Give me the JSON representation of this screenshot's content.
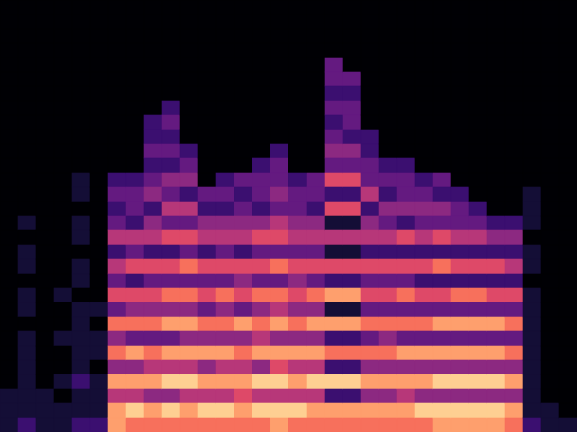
{
  "chart_data": {
    "type": "heatmap",
    "color": "magma",
    "zlim": [
      0,
      10
    ],
    "tick_labels": false,
    "cells": [
      [
        0,
        0,
        0,
        0,
        0,
        0,
        0,
        0,
        0,
        0,
        0,
        0,
        0,
        0,
        0,
        0,
        0,
        0,
        0,
        0,
        0,
        0,
        0,
        0,
        0,
        0,
        0,
        1,
        1,
        1
      ],
      [
        0,
        0,
        0,
        0,
        0,
        0,
        0,
        0,
        0,
        0,
        0,
        0,
        0,
        0,
        0,
        1,
        0,
        1,
        1,
        0,
        1,
        1,
        0,
        1,
        1,
        1,
        1,
        1,
        1,
        2
      ],
      [
        0,
        0,
        0,
        0,
        0,
        0,
        0,
        0,
        0,
        0,
        0,
        0,
        0,
        0,
        0,
        0,
        0,
        0,
        0,
        0,
        0,
        0,
        0,
        0,
        0,
        0,
        0,
        1,
        1,
        1
      ],
      [
        0,
        0,
        0,
        0,
        0,
        0,
        0,
        0,
        0,
        0,
        0,
        0,
        0,
        0,
        0,
        0,
        0,
        0,
        0,
        0,
        1,
        0,
        0,
        1,
        0,
        0,
        1,
        0,
        1,
        1
      ],
      [
        0,
        0,
        0,
        0,
        0,
        0,
        0,
        0,
        0,
        0,
        0,
        0,
        1,
        1,
        0,
        1,
        1,
        0,
        1,
        1,
        0,
        1,
        1,
        1,
        1,
        1,
        2,
        1,
        1,
        2
      ],
      [
        0,
        0,
        0,
        0,
        0,
        0,
        0,
        0,
        0,
        0,
        0,
        0,
        0,
        0,
        0,
        0,
        0,
        0,
        0,
        0,
        0,
        1,
        0,
        1,
        1,
        0,
        1,
        1,
        1,
        2
      ],
      [
        0,
        0,
        0,
        0,
        0,
        0,
        0,
        0,
        0,
        0,
        0,
        0,
        2,
        3,
        2,
        3,
        5,
        2,
        5,
        3,
        6,
        3,
        7,
        4,
        7,
        4,
        8,
        5,
        8,
        8
      ],
      [
        0,
        0,
        0,
        0,
        0,
        0,
        0,
        0,
        0,
        0,
        0,
        0,
        2,
        3,
        3,
        2,
        5,
        3,
        6,
        2,
        6,
        4,
        7,
        3,
        8,
        4,
        8,
        5,
        9,
        7
      ],
      [
        0,
        0,
        0,
        0,
        0,
        0,
        0,
        0,
        2,
        2,
        3,
        2,
        3,
        4,
        2,
        4,
        5,
        2,
        6,
        3,
        6,
        4,
        7,
        3,
        7,
        5,
        8,
        4,
        8,
        7
      ],
      [
        0,
        0,
        0,
        0,
        0,
        0,
        0,
        2,
        3,
        2,
        3,
        2,
        4,
        3,
        5,
        3,
        6,
        2,
        6,
        3,
        7,
        4,
        8,
        3,
        8,
        5,
        9,
        4,
        9,
        7
      ],
      [
        0,
        0,
        0,
        0,
        0,
        0,
        0,
        0,
        0,
        0,
        2,
        3,
        4,
        2,
        5,
        3,
        6,
        3,
        7,
        3,
        7,
        4,
        8,
        4,
        8,
        5,
        9,
        5,
        8,
        7
      ],
      [
        0,
        0,
        0,
        0,
        0,
        0,
        0,
        0,
        0,
        0,
        0,
        0,
        0,
        3,
        2,
        4,
        5,
        2,
        6,
        3,
        6,
        3,
        7,
        4,
        8,
        4,
        8,
        5,
        9,
        7
      ],
      [
        0,
        0,
        0,
        0,
        0,
        0,
        0,
        0,
        0,
        0,
        0,
        0,
        2,
        3,
        2,
        4,
        5,
        3,
        6,
        3,
        7,
        4,
        7,
        4,
        8,
        5,
        8,
        5,
        9,
        7
      ],
      [
        0,
        0,
        0,
        0,
        0,
        0,
        0,
        0,
        0,
        0,
        0,
        0,
        3,
        2,
        3,
        4,
        5,
        2,
        6,
        4,
        6,
        3,
        8,
        4,
        7,
        5,
        8,
        6,
        8,
        7
      ],
      [
        0,
        0,
        0,
        0,
        0,
        0,
        0,
        0,
        0,
        0,
        0,
        2,
        3,
        3,
        2,
        4,
        6,
        3,
        6,
        3,
        7,
        4,
        7,
        5,
        8,
        4,
        9,
        5,
        9,
        7
      ],
      [
        0,
        0,
        0,
        0,
        0,
        0,
        0,
        0,
        0,
        0,
        2,
        3,
        3,
        4,
        3,
        5,
        6,
        3,
        7,
        3,
        7,
        5,
        8,
        4,
        8,
        6,
        9,
        5,
        9,
        8
      ],
      [
        0,
        0,
        0,
        0,
        0,
        0,
        0,
        0,
        0,
        0,
        0,
        0,
        2,
        3,
        3,
        4,
        5,
        3,
        6,
        4,
        6,
        4,
        7,
        4,
        8,
        5,
        8,
        5,
        9,
        7
      ],
      [
        0,
        0,
        0,
        0,
        0,
        0,
        0,
        0,
        0,
        0,
        0,
        0,
        3,
        3,
        2,
        4,
        5,
        3,
        6,
        3,
        7,
        4,
        8,
        4,
        8,
        5,
        9,
        5,
        8,
        7
      ],
      [
        0,
        0,
        0,
        0,
        3,
        3,
        2,
        3,
        2,
        3,
        4,
        3,
        6,
        2,
        6,
        1,
        5,
        1,
        6,
        2,
        8,
        1,
        8,
        2,
        7,
        2,
        9,
        2,
        8,
        7
      ],
      [
        0,
        0,
        0,
        0,
        0,
        3,
        2,
        3,
        3,
        2,
        4,
        3,
        6,
        2,
        6,
        1,
        5,
        1,
        6,
        2,
        8,
        1,
        8,
        2,
        7,
        2,
        9,
        2,
        8,
        7
      ],
      [
        0,
        0,
        0,
        0,
        0,
        0,
        0,
        0,
        0,
        2,
        2,
        3,
        3,
        5,
        2,
        4,
        5,
        2,
        6,
        3,
        6,
        3,
        7,
        3,
        7,
        4,
        8,
        4,
        8,
        7
      ],
      [
        0,
        0,
        0,
        0,
        0,
        0,
        0,
        0,
        0,
        0,
        0,
        2,
        3,
        2,
        4,
        3,
        5,
        2,
        6,
        3,
        6,
        3,
        7,
        4,
        7,
        4,
        8,
        4,
        8,
        7
      ],
      [
        0,
        0,
        0,
        0,
        0,
        0,
        0,
        0,
        0,
        0,
        0,
        2,
        3,
        3,
        4,
        2,
        6,
        2,
        6,
        3,
        7,
        3,
        7,
        3,
        8,
        4,
        8,
        5,
        8,
        7
      ],
      [
        0,
        0,
        0,
        0,
        0,
        0,
        0,
        0,
        0,
        0,
        0,
        0,
        2,
        3,
        4,
        3,
        5,
        2,
        6,
        2,
        6,
        3,
        7,
        3,
        8,
        4,
        8,
        4,
        9,
        7
      ],
      [
        0,
        0,
        0,
        0,
        0,
        0,
        0,
        0,
        0,
        0,
        0,
        0,
        3,
        2,
        4,
        3,
        6,
        2,
        7,
        2,
        6,
        3,
        8,
        3,
        8,
        4,
        9,
        4,
        9,
        8
      ],
      [
        0,
        0,
        0,
        0,
        0,
        0,
        0,
        0,
        0,
        0,
        0,
        0,
        0,
        2,
        3,
        3,
        5,
        2,
        6,
        2,
        7,
        3,
        8,
        3,
        8,
        4,
        9,
        4,
        9,
        8
      ],
      [
        0,
        0,
        0,
        0,
        0,
        0,
        0,
        0,
        0,
        0,
        0,
        0,
        0,
        0,
        2,
        3,
        5,
        2,
        6,
        2,
        7,
        3,
        8,
        3,
        8,
        4,
        9,
        4,
        9,
        8
      ],
      [
        0,
        0,
        0,
        0,
        0,
        0,
        0,
        0,
        0,
        0,
        0,
        0,
        0,
        0,
        0,
        2,
        4,
        2,
        6,
        2,
        6,
        3,
        8,
        3,
        8,
        4,
        9,
        4,
        9,
        8
      ],
      [
        0,
        0,
        0,
        0,
        0,
        0,
        0,
        0,
        0,
        0,
        0,
        0,
        0,
        0,
        0,
        2,
        4,
        2,
        5,
        2,
        6,
        3,
        7,
        3,
        7,
        4,
        8,
        4,
        8,
        7
      ],
      [
        0,
        0,
        0,
        0,
        0,
        0,
        0,
        0,
        0,
        0,
        0,
        0,
        0,
        1,
        1,
        1,
        0,
        1,
        1,
        0,
        1,
        1,
        1,
        1,
        1,
        1,
        1,
        1,
        1,
        2
      ],
      [
        0,
        0,
        0,
        0,
        0,
        0,
        0,
        0,
        0,
        0,
        0,
        0,
        0,
        0,
        0,
        0,
        0,
        0,
        0,
        0,
        0,
        0,
        0,
        0,
        0,
        0,
        0,
        0,
        1,
        1
      ],
      [
        0,
        0,
        0,
        0,
        0,
        0,
        0,
        0,
        0,
        0,
        0,
        0,
        0,
        0,
        0,
        0,
        0,
        0,
        0,
        0,
        0,
        0,
        0,
        0,
        0,
        0,
        0,
        0,
        0,
        1
      ]
    ]
  }
}
